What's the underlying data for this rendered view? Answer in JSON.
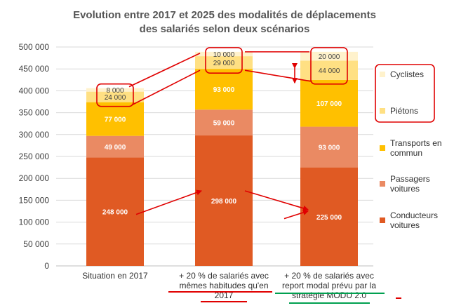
{
  "chart_data": {
    "type": "bar",
    "stacked": true,
    "title": [
      "Evolution entre 2017 et 2025 des modalités de déplacements",
      "des salariés selon deux scénarios"
    ],
    "categories": [
      [
        "Situation en 2017"
      ],
      [
        "+ 20 % de salariés avec",
        "mêmes habitudes qu'en",
        "2017"
      ],
      [
        "+ 20 % de salariés avec",
        "report modal prévu par la",
        "stratégie MODU 2.0"
      ]
    ],
    "ylim": [
      0,
      500000
    ],
    "yticks": [
      0,
      50000,
      100000,
      150000,
      200000,
      250000,
      300000,
      350000,
      400000,
      450000,
      500000
    ],
    "ytick_labels": [
      "0",
      "50 000",
      "100 000",
      "150 000",
      "200 000",
      "250 000",
      "300 000",
      "350 000",
      "400 000",
      "450 000",
      "500 000"
    ],
    "grid": true,
    "legend_position": "right",
    "series": [
      {
        "name": [
          "Conducteurs",
          "voitures"
        ],
        "color": "#e05a23",
        "values": [
          248000,
          298000,
          225000
        ],
        "labels": [
          "248 000",
          "298 000",
          "225 000"
        ]
      },
      {
        "name": [
          "Passagers",
          "voitures"
        ],
        "color": "#ea8a63",
        "values": [
          49000,
          59000,
          93000
        ],
        "labels": [
          "49 000",
          "59 000",
          "93 000"
        ]
      },
      {
        "name": [
          "Transports en",
          "commun"
        ],
        "color": "#ffc000",
        "values": [
          77000,
          93000,
          107000
        ],
        "labels": [
          "77 000",
          "93 000",
          "107 000"
        ]
      },
      {
        "name": [
          "Piétons"
        ],
        "color": "#ffe083",
        "values": [
          24000,
          29000,
          44000
        ],
        "labels": [
          "24 000",
          "29 000",
          "44 000"
        ]
      },
      {
        "name": [
          "Cyclistes"
        ],
        "color": "#fff2cc",
        "values": [
          8000,
          10000,
          20000
        ],
        "labels": [
          "8 000",
          "10 000",
          "20 000"
        ]
      }
    ],
    "annotation_colors": {
      "red": "#e00000",
      "green": "#00a050"
    }
  }
}
